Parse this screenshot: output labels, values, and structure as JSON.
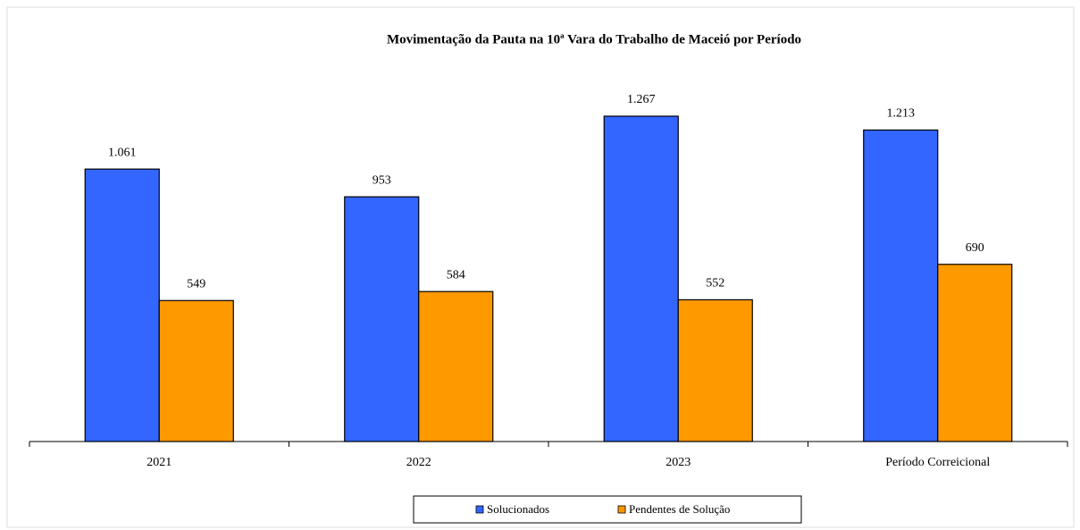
{
  "chart_data": {
    "type": "bar",
    "title": "Movimentação da Pauta na 10ª Vara do Trabalho de Maceió  por Período",
    "categories": [
      "2021",
      "2022",
      "2023",
      "Período Correicional"
    ],
    "series": [
      {
        "name": "Solucionados",
        "color": "#3366ff",
        "values": [
          1061,
          953,
          1267,
          1213
        ],
        "value_labels": [
          "1.061",
          "953",
          "1.267",
          "1.213"
        ]
      },
      {
        "name": "Pendentes de Solução",
        "color": "#ff9900",
        "values": [
          549,
          584,
          552,
          690
        ],
        "value_labels": [
          "549",
          "584",
          "552",
          "690"
        ]
      }
    ],
    "legend": "bottom"
  }
}
